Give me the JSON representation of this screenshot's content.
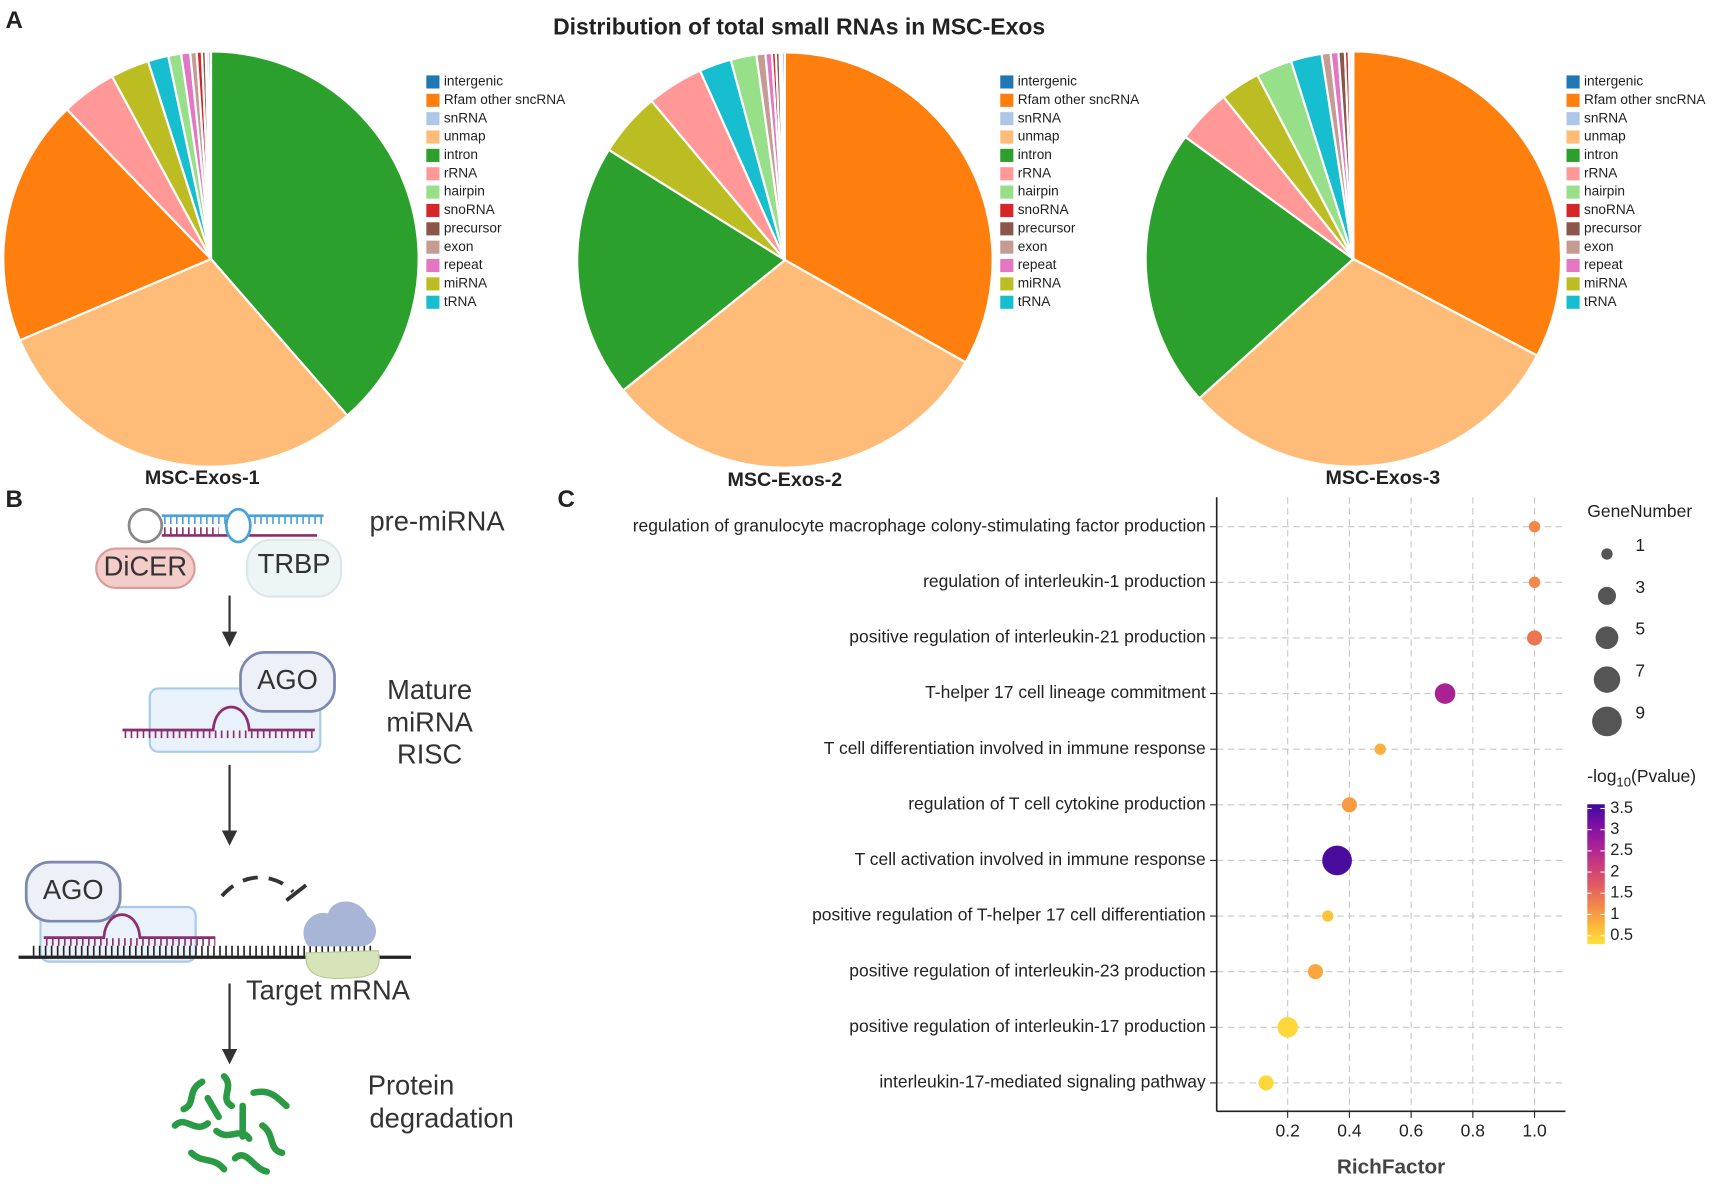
{
  "panel_labels": [
    "A",
    "B",
    "C"
  ],
  "title": "Distribution of total small RNAs in MSC-Exos",
  "chart_data": [
    {
      "type": "pie",
      "title": "MSC-Exos-1",
      "categories": [
        "intron",
        "unmap",
        "Rfam other sncRNA",
        "rRNA",
        "miRNA",
        "tRNA",
        "hairpin",
        "repeat",
        "exon",
        "snoRNA",
        "precursor",
        "snRNA",
        "intergenic"
      ],
      "values": [
        38.6,
        30,
        19.2,
        4.3,
        3,
        1.6,
        1,
        0.7,
        0.5,
        0.4,
        0.3,
        0.2,
        0.2
      ],
      "colors": [
        "#2ca02c",
        "#ffbb78",
        "#ff7f0e",
        "#ff9896",
        "#bcbd22",
        "#17becf",
        "#98df8a",
        "#e377c2",
        "#c49c94",
        "#d62728",
        "#8c564b",
        "#aec7e8",
        "#1f77b4"
      ],
      "legend": [
        {
          "name": "intergenic",
          "color": "#1f77b4"
        },
        {
          "name": "Rfam other sncRNA",
          "color": "#ff7f0e"
        },
        {
          "name": "snRNA",
          "color": "#aec7e8"
        },
        {
          "name": "unmap",
          "color": "#ffbb78"
        },
        {
          "name": "intron",
          "color": "#2ca02c"
        },
        {
          "name": "rRNA",
          "color": "#ff9896"
        },
        {
          "name": "hairpin",
          "color": "#98df8a"
        },
        {
          "name": "snoRNA",
          "color": "#d62728"
        },
        {
          "name": "precursor",
          "color": "#8c564b"
        },
        {
          "name": "exon",
          "color": "#c49c94"
        },
        {
          "name": "repeat",
          "color": "#e377c2"
        },
        {
          "name": "miRNA",
          "color": "#bcbd22"
        },
        {
          "name": "tRNA",
          "color": "#17becf"
        }
      ]
    },
    {
      "type": "pie",
      "title": "MSC-Exos-2",
      "categories": [
        "Rfam other sncRNA",
        "unmap",
        "intron",
        "miRNA",
        "rRNA",
        "tRNA",
        "hairpin",
        "exon",
        "repeat",
        "snoRNA",
        "precursor",
        "snRNA",
        "intergenic"
      ],
      "values": [
        33.2,
        31,
        19.7,
        5,
        4.4,
        2.5,
        2,
        0.7,
        0.5,
        0.3,
        0.3,
        0.2,
        0.2
      ],
      "colors": [
        "#ff7f0e",
        "#ffbb78",
        "#2ca02c",
        "#bcbd22",
        "#ff9896",
        "#17becf",
        "#98df8a",
        "#c49c94",
        "#e377c2",
        "#d62728",
        "#8c564b",
        "#aec7e8",
        "#1f77b4"
      ],
      "legend": [
        {
          "name": "intergenic",
          "color": "#1f77b4"
        },
        {
          "name": "Rfam other sncRNA",
          "color": "#ff7f0e"
        },
        {
          "name": "snRNA",
          "color": "#aec7e8"
        },
        {
          "name": "unmap",
          "color": "#ffbb78"
        },
        {
          "name": "intron",
          "color": "#2ca02c"
        },
        {
          "name": "rRNA",
          "color": "#ff9896"
        },
        {
          "name": "hairpin",
          "color": "#98df8a"
        },
        {
          "name": "snoRNA",
          "color": "#d62728"
        },
        {
          "name": "precursor",
          "color": "#8c564b"
        },
        {
          "name": "exon",
          "color": "#c49c94"
        },
        {
          "name": "repeat",
          "color": "#e377c2"
        },
        {
          "name": "miRNA",
          "color": "#bcbd22"
        },
        {
          "name": "tRNA",
          "color": "#17becf"
        }
      ]
    },
    {
      "type": "pie",
      "title": "MSC-Exos-3",
      "categories": [
        "Rfam other sncRNA",
        "unmap",
        "intron",
        "rRNA",
        "miRNA",
        "hairpin",
        "tRNA",
        "exon",
        "repeat",
        "precursor",
        "snoRNA",
        "snRNA",
        "intergenic"
      ],
      "values": [
        32.7,
        30.6,
        21.7,
        4.25,
        3.1,
        2.8,
        2.4,
        0.7,
        0.6,
        0.5,
        0.3,
        0.2,
        0.15
      ],
      "colors": [
        "#ff7f0e",
        "#ffbb78",
        "#2ca02c",
        "#ff9896",
        "#bcbd22",
        "#98df8a",
        "#17becf",
        "#c49c94",
        "#e377c2",
        "#8c564b",
        "#d62728",
        "#aec7e8",
        "#1f77b4"
      ],
      "legend": [
        {
          "name": "intergenic",
          "color": "#1f77b4"
        },
        {
          "name": "Rfam other sncRNA",
          "color": "#ff7f0e"
        },
        {
          "name": "snRNA",
          "color": "#aec7e8"
        },
        {
          "name": "unmap",
          "color": "#ffbb78"
        },
        {
          "name": "intron",
          "color": "#2ca02c"
        },
        {
          "name": "rRNA",
          "color": "#ff9896"
        },
        {
          "name": "hairpin",
          "color": "#98df8a"
        },
        {
          "name": "snoRNA",
          "color": "#d62728"
        },
        {
          "name": "precursor",
          "color": "#8c564b"
        },
        {
          "name": "exon",
          "color": "#c49c94"
        },
        {
          "name": "repeat",
          "color": "#e377c2"
        },
        {
          "name": "miRNA",
          "color": "#bcbd22"
        },
        {
          "name": "tRNA",
          "color": "#17becf"
        }
      ]
    },
    {
      "type": "dot",
      "xlabel": "RichFactor",
      "categories": [
        "regulation of granulocyte macrophage colony-stimulating factor production",
        "regulation of interleukin-1 production",
        "positive regulation of interleukin-21 production",
        "T-helper 17 cell lineage commitment",
        "T cell differentiation involved in immune response",
        "regulation of T cell cytokine production",
        "T cell activation involved in immune response",
        "positive regulation of T-helper 17 cell differentiation",
        "positive regulation of interleukin-23 production",
        "positive regulation of interleukin-17 production",
        "interleukin-17-mediated signaling pathway"
      ],
      "x": [
        1.0,
        1.0,
        1.0,
        0.71,
        0.5,
        0.4,
        0.36,
        0.33,
        0.29,
        0.2,
        0.13
      ],
      "sizes": [
        1,
        1,
        2,
        4,
        1,
        2,
        9,
        1,
        2,
        4,
        2
      ],
      "color_values": [
        1.2,
        1.2,
        1.4,
        2.6,
        0.8,
        1.0,
        3.5,
        0.6,
        0.9,
        0.4,
        0.4
      ],
      "xlim": [
        -0.03,
        1.1
      ],
      "xticks": [
        0.2,
        0.4,
        0.6,
        0.8,
        {
          "value": 1.0,
          "label": "1.0"
        }
      ],
      "grid": true,
      "size_legend_title": "GeneNumber",
      "size_ticks": [
        1,
        3,
        5,
        7,
        9
      ],
      "colorbar_title": [
        "-log",
        "10",
        "(Pvalue)"
      ],
      "clim": [
        0.3,
        3.6
      ],
      "cticks": [
        0.5,
        1,
        1.5,
        2,
        2.5,
        3,
        3.5
      ],
      "colormap": [
        "#fde23a",
        "#fbb33b",
        "#f2844b",
        "#e05a63",
        "#c93a7e",
        "#a51f97",
        "#7b0ea6",
        "#3c0b9b"
      ]
    }
  ],
  "diagram": {
    "precursor": "pre-miRNA",
    "dicer": "DiCER",
    "trbp": "TRBP",
    "ago_1": "AGO",
    "risc": [
      "Mature",
      "miRNA",
      "RISC"
    ],
    "ago_2": "AGO",
    "target": "Target mRNA",
    "outcome": [
      "Protein",
      "degradation"
    ]
  }
}
